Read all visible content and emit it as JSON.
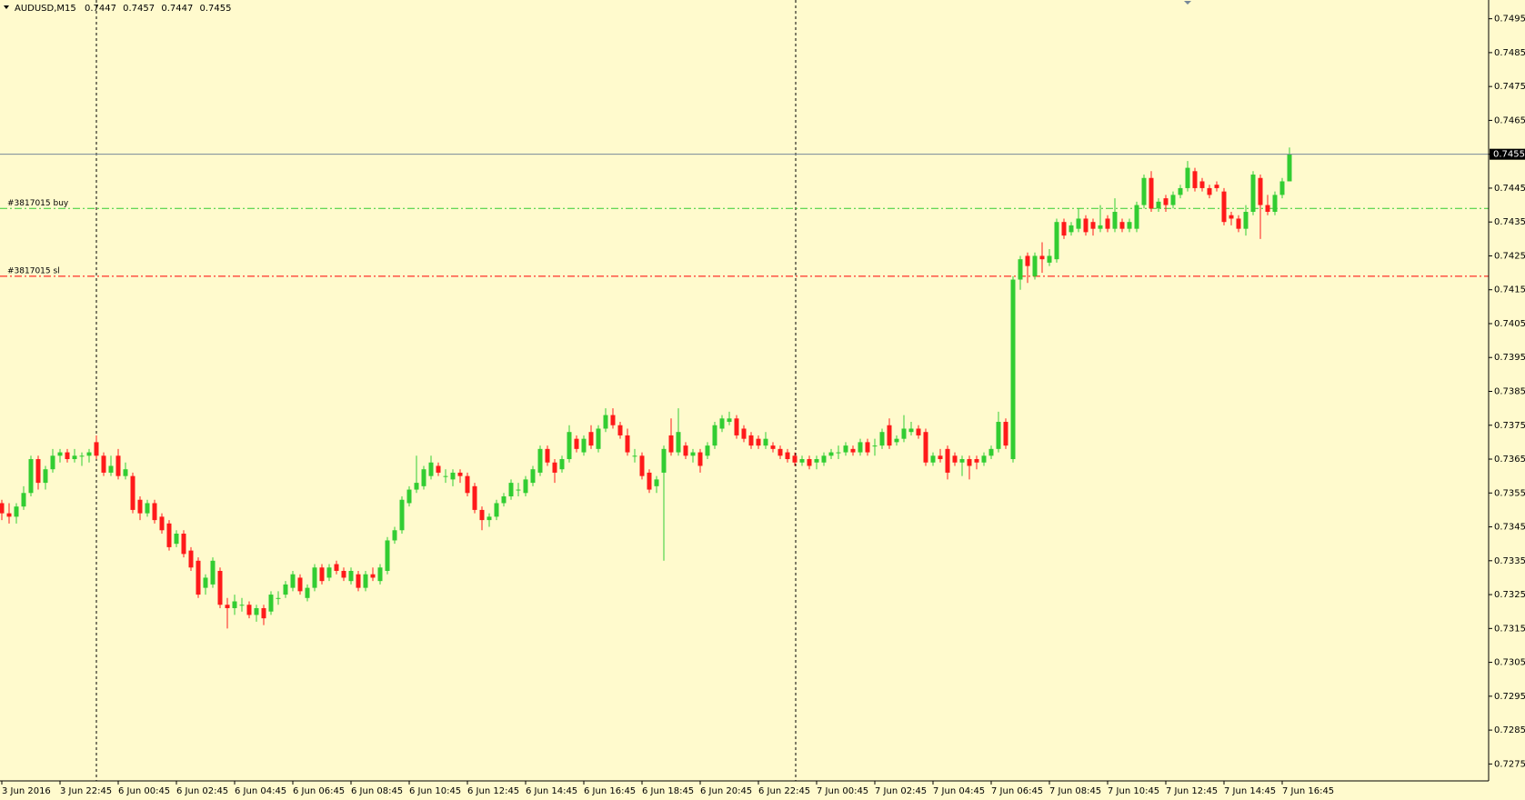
{
  "chart_data": {
    "type": "candlestick",
    "title": "AUDUSD,M15",
    "up_color": "#32cd32",
    "down_color": "#ff1a1a",
    "ylim": [
      0.727,
      0.75
    ],
    "yticks": [
      0.7275,
      0.7285,
      0.7295,
      0.7305,
      0.7315,
      0.7325,
      0.7335,
      0.7345,
      0.7355,
      0.7365,
      0.7375,
      0.7385,
      0.7395,
      0.7405,
      0.7415,
      0.7425,
      0.7435,
      0.7445,
      0.7455,
      0.7465,
      0.7475,
      0.7485,
      0.7495
    ],
    "order_lines": [
      {
        "label": "#3817015 buy",
        "level": 0.7439,
        "color": "#32cd32"
      },
      {
        "label": "#3817015 sl",
        "level": 0.7419,
        "color": "#ff0000"
      }
    ],
    "categories": [
      "3 Jun 2016",
      null,
      null,
      null,
      null,
      null,
      null,
      null,
      "3 Jun 22:45",
      null,
      null,
      null,
      null,
      null,
      null,
      null,
      "6 Jun 00:45",
      null,
      null,
      null,
      null,
      null,
      null,
      null,
      "6 Jun 02:45",
      null,
      null,
      null,
      null,
      null,
      null,
      null,
      "6 Jun 04:45",
      null,
      null,
      null,
      null,
      null,
      null,
      null,
      "6 Jun 06:45",
      null,
      null,
      null,
      null,
      null,
      null,
      null,
      "6 Jun 08:45",
      null,
      null,
      null,
      null,
      null,
      null,
      null,
      "6 Jun 10:45",
      null,
      null,
      null,
      null,
      null,
      null,
      null,
      "6 Jun 12:45",
      null,
      null,
      null,
      null,
      null,
      null,
      null,
      "6 Jun 14:45",
      null,
      null,
      null,
      null,
      null,
      null,
      null,
      "6 Jun 16:45",
      null,
      null,
      null,
      null,
      null,
      null,
      null,
      "6 Jun 18:45",
      null,
      null,
      null,
      null,
      null,
      null,
      null,
      "6 Jun 20:45",
      null,
      null,
      null,
      null,
      null,
      null,
      null,
      "6 Jun 22:45",
      null,
      null,
      null,
      null,
      null,
      null,
      null,
      "7 Jun 00:45",
      null,
      null,
      null,
      null,
      null,
      null,
      null,
      "7 Jun 02:45",
      null,
      null,
      null,
      null,
      null,
      null,
      null,
      "7 Jun 04:45",
      null,
      null,
      null,
      null,
      null,
      null,
      null,
      "7 Jun 06:45",
      null,
      null,
      null,
      null,
      null,
      null,
      null,
      "7 Jun 08:45",
      null,
      null,
      null,
      null,
      null,
      null,
      null,
      "7 Jun 10:45",
      null,
      null,
      null,
      null,
      null,
      null,
      null,
      "7 Jun 12:45",
      null,
      null,
      null,
      null,
      null,
      null,
      null,
      "7 Jun 14:45",
      null,
      null,
      null,
      null,
      null,
      null,
      null,
      "7 Jun 16:45",
      null
    ],
    "open": [
      0.7352,
      0.7349,
      0.7348,
      0.7351,
      0.7355,
      0.7365,
      0.7358,
      0.7362,
      0.7366,
      0.7367,
      0.7365,
      0.7366,
      0.7366,
      0.737,
      0.7366,
      0.7361,
      0.7366,
      0.736,
      0.736,
      0.7353,
      0.7349,
      0.7352,
      0.7348,
      0.7346,
      0.734,
      0.7343,
      0.7338,
      0.7335,
      0.7327,
      0.7328,
      0.7332,
      0.7322,
      0.7321,
      0.7322,
      0.7322,
      0.7319,
      0.7321,
      0.732,
      0.7324,
      0.7325,
      0.7327,
      0.733,
      0.7324,
      0.7327,
      0.7333,
      0.733,
      0.7334,
      0.7332,
      0.7329,
      0.7331,
      0.7327,
      0.7331,
      0.7329,
      0.7332,
      0.7341,
      0.7344,
      0.7352,
      0.7356,
      0.7357,
      0.736,
      0.7363,
      0.736,
      0.7359,
      0.7361,
      0.736,
      0.7357,
      0.735,
      0.7347,
      0.7348,
      0.7352,
      0.7354,
      0.7356,
      0.7355,
      0.7358,
      0.7361,
      0.7368,
      0.7364,
      0.7362,
      0.7365,
      0.7371,
      0.7367,
      0.7373,
      0.7368,
      0.7374,
      0.7378,
      0.7375,
      0.7372,
      0.7366,
      0.7366,
      0.7361,
      0.7357,
      0.7361,
      0.7372,
      0.7367,
      0.7369,
      0.7366,
      0.7367,
      0.7366,
      0.7369,
      0.7374,
      0.7376,
      0.7377,
      0.7374,
      0.7372,
      0.7371,
      0.7369,
      0.7369,
      0.7368,
      0.7367,
      0.7366,
      0.7364,
      0.7365,
      0.7364,
      0.7364,
      0.7366,
      0.7367,
      0.7367,
      0.7368,
      0.7367,
      0.737,
      0.7369,
      0.7369,
      0.7375,
      0.737,
      0.7371,
      0.7373,
      0.7374,
      0.7373,
      0.7364,
      0.7366,
      0.7368,
      0.7366,
      0.7364,
      0.7365,
      0.7365,
      0.7364,
      0.7366,
      0.7368,
      0.7376,
      0.7365,
      0.7418,
      0.7425,
      0.7419,
      0.7425,
      0.7423,
      0.7424,
      0.7435,
      0.7432,
      0.7433,
      0.7436,
      0.7435,
      0.7433,
      0.7436,
      0.7433,
      0.7435,
      0.7433,
      0.7433,
      0.744,
      0.7448,
      0.7439,
      0.7442,
      0.744,
      0.7443,
      0.7445,
      0.745,
      0.7447,
      0.7445,
      0.7446,
      0.7444,
      0.7437,
      0.7436,
      0.7433,
      0.7438,
      0.7448,
      0.744,
      0.7438,
      0.7443,
      0.7447
    ],
    "high": [
      0.7353,
      0.7352,
      0.7352,
      0.7357,
      0.7366,
      0.7366,
      0.7363,
      0.7368,
      0.7368,
      0.7368,
      0.7368,
      0.7367,
      0.7368,
      0.7372,
      0.7367,
      0.7366,
      0.7368,
      0.7364,
      0.7361,
      0.7354,
      0.7353,
      0.7353,
      0.7349,
      0.7347,
      0.7344,
      0.7344,
      0.7339,
      0.7336,
      0.7331,
      0.7336,
      0.7333,
      0.7324,
      0.7325,
      0.7324,
      0.7323,
      0.7322,
      0.7322,
      0.7326,
      0.7326,
      0.7329,
      0.7332,
      0.7331,
      0.7328,
      0.7334,
      0.7334,
      0.7334,
      0.7335,
      0.7333,
      0.7333,
      0.7332,
      0.7332,
      0.7333,
      0.7334,
      0.7342,
      0.7345,
      0.7354,
      0.7357,
      0.7366,
      0.7363,
      0.7366,
      0.7364,
      0.7362,
      0.7362,
      0.7362,
      0.7361,
      0.7358,
      0.7351,
      0.7349,
      0.7353,
      0.7355,
      0.7359,
      0.7358,
      0.736,
      0.7363,
      0.7369,
      0.7369,
      0.7365,
      0.7366,
      0.7375,
      0.7372,
      0.7372,
      0.7375,
      0.7375,
      0.738,
      0.738,
      0.7376,
      0.7374,
      0.7368,
      0.7367,
      0.7362,
      0.736,
      0.7369,
      0.7377,
      0.738,
      0.737,
      0.7368,
      0.7368,
      0.737,
      0.7376,
      0.7378,
      0.7379,
      0.7378,
      0.7375,
      0.7373,
      0.7372,
      0.7373,
      0.737,
      0.7369,
      0.7368,
      0.7367,
      0.7366,
      0.7366,
      0.7366,
      0.7367,
      0.7368,
      0.7369,
      0.737,
      0.7369,
      0.7371,
      0.7371,
      0.7371,
      0.7374,
      0.7377,
      0.7372,
      0.7378,
      0.7376,
      0.7375,
      0.7374,
      0.7367,
      0.7368,
      0.7369,
      0.7367,
      0.7366,
      0.7366,
      0.7366,
      0.7367,
      0.7369,
      0.7379,
      0.7377,
      0.7419,
      0.7425,
      0.7426,
      0.7426,
      0.7429,
      0.7427,
      0.7436,
      0.7436,
      0.7435,
      0.7439,
      0.7437,
      0.7436,
      0.744,
      0.7437,
      0.7442,
      0.7436,
      0.7436,
      0.7441,
      0.7449,
      0.745,
      0.7442,
      0.7443,
      0.7444,
      0.7446,
      0.7453,
      0.7451,
      0.7448,
      0.7446,
      0.7447,
      0.7445,
      0.7438,
      0.7437,
      0.744,
      0.745,
      0.7449,
      0.7443,
      0.7444,
      0.7448,
      0.7457
    ],
    "low": [
      0.7347,
      0.7346,
      0.7346,
      0.735,
      0.7354,
      0.7356,
      0.7356,
      0.7361,
      0.7364,
      0.7364,
      0.7364,
      0.7363,
      0.7364,
      0.7365,
      0.736,
      0.736,
      0.7359,
      0.7359,
      0.7349,
      0.7347,
      0.7348,
      0.7346,
      0.7343,
      0.7338,
      0.7339,
      0.7336,
      0.7332,
      0.7324,
      0.7325,
      0.7327,
      0.7321,
      0.7315,
      0.7319,
      0.732,
      0.7318,
      0.7317,
      0.7316,
      0.7319,
      0.7322,
      0.7324,
      0.7326,
      0.7325,
      0.7323,
      0.7326,
      0.7328,
      0.7329,
      0.7331,
      0.7329,
      0.7328,
      0.7326,
      0.7326,
      0.7329,
      0.7328,
      0.7331,
      0.734,
      0.7343,
      0.7351,
      0.7355,
      0.7356,
      0.7359,
      0.736,
      0.7358,
      0.7357,
      0.7358,
      0.7354,
      0.7349,
      0.7344,
      0.7345,
      0.7347,
      0.7351,
      0.7353,
      0.7354,
      0.7354,
      0.7357,
      0.736,
      0.7363,
      0.7358,
      0.7361,
      0.7364,
      0.7367,
      0.7366,
      0.7368,
      0.7367,
      0.7373,
      0.7374,
      0.7371,
      0.7366,
      0.7364,
      0.7359,
      0.7355,
      0.7355,
      0.7335,
      0.7366,
      0.7366,
      0.7365,
      0.7364,
      0.7361,
      0.7365,
      0.7368,
      0.7373,
      0.7375,
      0.7371,
      0.737,
      0.7368,
      0.7368,
      0.7368,
      0.7367,
      0.7365,
      0.7364,
      0.7363,
      0.7363,
      0.7362,
      0.7362,
      0.7363,
      0.7365,
      0.7365,
      0.7366,
      0.7366,
      0.7366,
      0.7366,
      0.7366,
      0.7368,
      0.7368,
      0.7369,
      0.737,
      0.7372,
      0.7371,
      0.7363,
      0.7363,
      0.7364,
      0.7359,
      0.7363,
      0.736,
      0.7359,
      0.7362,
      0.7363,
      0.7365,
      0.7367,
      0.7368,
      0.7364,
      0.7415,
      0.7417,
      0.7418,
      0.742,
      0.7422,
      0.7423,
      0.743,
      0.7431,
      0.7432,
      0.7431,
      0.7431,
      0.7432,
      0.7432,
      0.7432,
      0.7432,
      0.7432,
      0.7432,
      0.7439,
      0.7438,
      0.7438,
      0.7438,
      0.7439,
      0.7442,
      0.7444,
      0.7444,
      0.7444,
      0.7442,
      0.7444,
      0.7434,
      0.7434,
      0.7432,
      0.7431,
      0.7437,
      0.743,
      0.7437,
      0.7437,
      0.7442,
      0.7447
    ],
    "close": [
      0.7349,
      0.7348,
      0.7351,
      0.7355,
      0.7365,
      0.7358,
      0.7362,
      0.7366,
      0.7367,
      0.7365,
      0.7366,
      0.7366,
      0.7367,
      0.7366,
      0.7361,
      0.7363,
      0.736,
      0.7362,
      0.735,
      0.7349,
      0.7352,
      0.7347,
      0.7344,
      0.7339,
      0.7343,
      0.7337,
      0.7333,
      0.7325,
      0.733,
      0.7335,
      0.7322,
      0.7321,
      0.7323,
      0.7322,
      0.7319,
      0.7321,
      0.7318,
      0.7325,
      0.7324,
      0.7328,
      0.7331,
      0.7326,
      0.7327,
      0.7333,
      0.7329,
      0.7333,
      0.7332,
      0.733,
      0.7332,
      0.7327,
      0.7331,
      0.733,
      0.7333,
      0.7341,
      0.7344,
      0.7353,
      0.7356,
      0.7358,
      0.7362,
      0.7364,
      0.7361,
      0.736,
      0.7361,
      0.736,
      0.7355,
      0.735,
      0.7347,
      0.7348,
      0.7352,
      0.7354,
      0.7358,
      0.7356,
      0.7359,
      0.7362,
      0.7368,
      0.7364,
      0.7361,
      0.7365,
      0.7373,
      0.7368,
      0.7371,
      0.7369,
      0.7374,
      0.7378,
      0.7375,
      0.7372,
      0.7367,
      0.7366,
      0.736,
      0.7356,
      0.7359,
      0.7368,
      0.7367,
      0.7373,
      0.7366,
      0.7367,
      0.7363,
      0.7369,
      0.7375,
      0.7377,
      0.7377,
      0.7372,
      0.7371,
      0.7369,
      0.7369,
      0.7371,
      0.7368,
      0.7366,
      0.7365,
      0.7364,
      0.7365,
      0.7363,
      0.7365,
      0.7366,
      0.7367,
      0.7367,
      0.7369,
      0.7367,
      0.737,
      0.7367,
      0.7369,
      0.7373,
      0.7369,
      0.7371,
      0.7374,
      0.7374,
      0.7372,
      0.7364,
      0.7366,
      0.7365,
      0.7361,
      0.7364,
      0.7365,
      0.7363,
      0.7364,
      0.7366,
      0.7368,
      0.7376,
      0.7369,
      0.7418,
      0.7424,
      0.7422,
      0.7425,
      0.7424,
      0.7425,
      0.7435,
      0.7431,
      0.7434,
      0.7436,
      0.7432,
      0.7433,
      0.7434,
      0.7433,
      0.7438,
      0.7433,
      0.7435,
      0.744,
      0.7448,
      0.7439,
      0.7441,
      0.744,
      0.7443,
      0.7445,
      0.7451,
      0.7445,
      0.7445,
      0.7443,
      0.7445,
      0.7435,
      0.7436,
      0.7433,
      0.7438,
      0.7449,
      0.744,
      0.7438,
      0.7443,
      0.7447,
      0.7455
    ]
  }
}
